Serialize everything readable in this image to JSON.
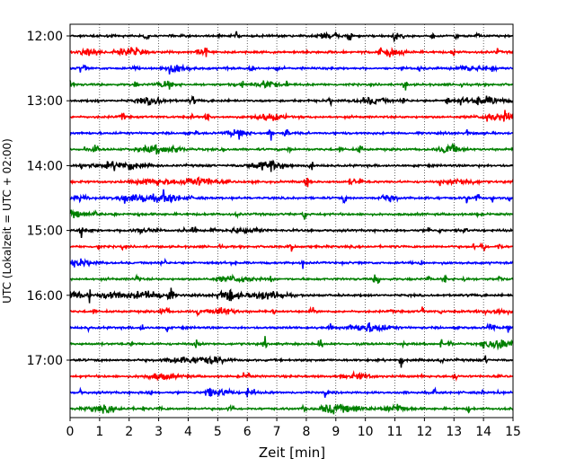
{
  "chart_data": {
    "type": "line",
    "subtype": "helicorder",
    "xlabel": "Zeit  [min]",
    "ylabel": "UTC (Lokalzeit = UTC + 02:00)",
    "xlim": [
      0,
      15
    ],
    "x_ticks": [
      "0",
      "1",
      "2",
      "3",
      "4",
      "5",
      "6",
      "7",
      "8",
      "9",
      "10",
      "11",
      "12",
      "13",
      "14",
      "15"
    ],
    "y_tick_labels": [
      "12:00",
      "13:00",
      "14:00",
      "15:00",
      "16:00",
      "17:00"
    ],
    "trace_count": 24,
    "trace_interval_min": 15,
    "start_time": "12:00",
    "trace_colors": [
      "#000000",
      "#ff0000",
      "#0000ff",
      "#008000"
    ],
    "grid": "vertical-dotted"
  }
}
